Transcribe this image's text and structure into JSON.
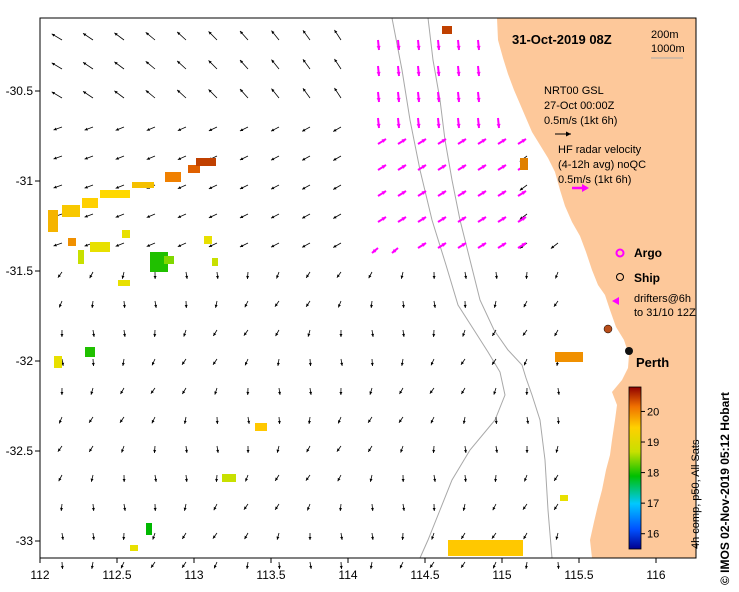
{
  "map": {
    "title": "31-Oct-2019 08Z",
    "city_label": "Perth",
    "credit": "© IMOS 02-Nov-2019 05:12 Hobart",
    "lon_ticks": [
      "112",
      "112.5",
      "113",
      "113.5",
      "114",
      "114.5",
      "115",
      "115.5",
      "116"
    ],
    "lat_ticks": [
      "-30.5",
      "-31",
      "-31.5",
      "-32",
      "-32.5",
      "-33"
    ],
    "isobath_labels": [
      "200m",
      "1000m"
    ]
  },
  "legend": {
    "nrt_line1": "NRT00 GSL",
    "nrt_line2": "27-Oct 00:00Z",
    "nrt_line3": "0.5m/s (1kt 6h)",
    "hf_line1": "HF radar velocity",
    "hf_line2": "(4-12h avg) noQC",
    "hf_line3": "0.5m/s (1kt 6h)",
    "argo": "Argo",
    "ship": "Ship",
    "drifters_line1": "drifters@6h",
    "drifters_line2": "to 31/10 12Z"
  },
  "colorbar": {
    "ticks": [
      "16",
      "17",
      "18",
      "19",
      "20"
    ],
    "label": "4h comp, p50, All Sats",
    "min": 15.5,
    "max": 20.8
  },
  "colors": {
    "land": "#fdc89a",
    "hf_arrow": "#ff00ff",
    "isobath": "#a8a8a8"
  }
}
